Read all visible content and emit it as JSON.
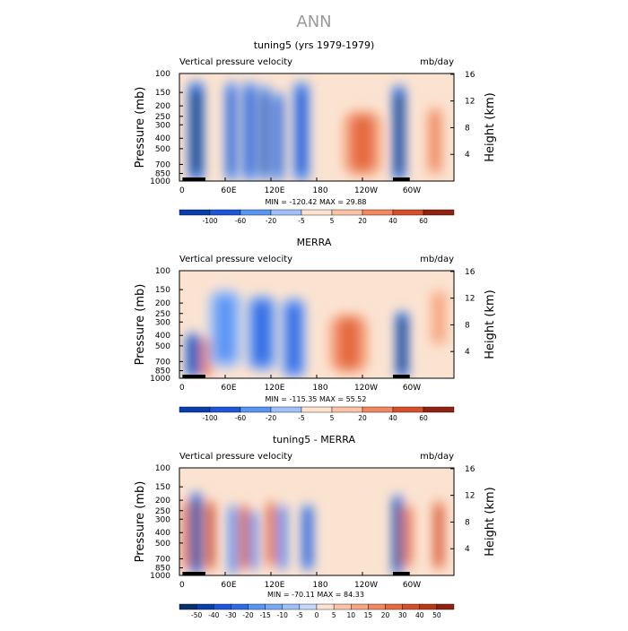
{
  "figure": {
    "title": "ANN"
  },
  "colors": {
    "blue_ramp": [
      "#08306b",
      "#0a3ea8",
      "#1f56d6",
      "#2d6ce6",
      "#3f80ef",
      "#5a95f3",
      "#7aa9f6",
      "#9fc1f8",
      "#c3d8fb"
    ],
    "red_ramp": [
      "#fde2cf",
      "#f9c4a6",
      "#f5a682",
      "#f08860",
      "#e56b40",
      "#d4502a",
      "#b8391a",
      "#8f2212"
    ],
    "neutral": "#fbe3d1",
    "topography": "#000000"
  },
  "chart_data": [
    {
      "type": "heatmap",
      "title": "tuning5 (yrs 1979-1979)",
      "left_label": "Vertical pressure velocity",
      "units": "mb/day",
      "ylabel": "Pressure (mb)",
      "ylabel_right": "Height (km)",
      "y_ticks": [
        "100",
        "150",
        "200",
        "250",
        "300",
        "400",
        "500",
        "700",
        "850",
        "1000"
      ],
      "y_ticks_right": [
        "16",
        "12",
        "8",
        "4"
      ],
      "x_ticks": [
        "0",
        "60E",
        "120E",
        "180",
        "120W",
        "60W"
      ],
      "stats": "MIN = -120.42   MAX =  29.88",
      "colorbar_labels": [
        "-100",
        "-60",
        "-20",
        "-5",
        "5",
        "20",
        "40",
        "60"
      ],
      "ylim": [
        1000,
        100
      ],
      "xlim": [
        0,
        360
      ],
      "fields": [
        {
          "lon": 22,
          "width": 12,
          "value": -0.95,
          "top": 120,
          "bottom": 1000
        },
        {
          "lon": 68,
          "width": 9,
          "value": -0.7,
          "top": 120,
          "bottom": 1000
        },
        {
          "lon": 92,
          "width": 10,
          "value": -0.75,
          "top": 120,
          "bottom": 1000
        },
        {
          "lon": 112,
          "width": 8,
          "value": -0.8,
          "top": 130,
          "bottom": 1000
        },
        {
          "lon": 130,
          "width": 8,
          "value": -0.7,
          "top": 150,
          "bottom": 1000
        },
        {
          "lon": 160,
          "width": 12,
          "value": -0.75,
          "top": 120,
          "bottom": 1000
        },
        {
          "lon": 240,
          "width": 30,
          "value": 0.55,
          "top": 220,
          "bottom": 900
        },
        {
          "lon": 288,
          "width": 10,
          "value": -0.95,
          "top": 130,
          "bottom": 1000
        },
        {
          "lon": 335,
          "width": 14,
          "value": 0.45,
          "top": 200,
          "bottom": 900
        }
      ]
    },
    {
      "type": "heatmap",
      "title": "MERRA",
      "left_label": "Vertical pressure velocity",
      "units": "mb/day",
      "ylabel": "Pressure (mb)",
      "ylabel_right": "Height (km)",
      "y_ticks": [
        "100",
        "150",
        "200",
        "250",
        "300",
        "400",
        "500",
        "700",
        "850",
        "1000"
      ],
      "y_ticks_right": [
        "16",
        "12",
        "8",
        "4"
      ],
      "x_ticks": [
        "0",
        "60E",
        "120E",
        "180",
        "120W",
        "60W"
      ],
      "stats": "MIN = -115.35   MAX =  55.52",
      "colorbar_labels": [
        "-100",
        "-60",
        "-20",
        "-5",
        "5",
        "20",
        "40",
        "60"
      ],
      "ylim": [
        1000,
        100
      ],
      "xlim": [
        0,
        360
      ],
      "fields": [
        {
          "lon": 18,
          "width": 12,
          "value": -0.8,
          "top": 380,
          "bottom": 1000
        },
        {
          "lon": 35,
          "width": 8,
          "value": 0.5,
          "top": 420,
          "bottom": 1000
        },
        {
          "lon": 60,
          "width": 25,
          "value": -0.35,
          "top": 150,
          "bottom": 800
        },
        {
          "lon": 108,
          "width": 22,
          "value": -0.6,
          "top": 170,
          "bottom": 850
        },
        {
          "lon": 150,
          "width": 18,
          "value": -0.65,
          "top": 180,
          "bottom": 1000
        },
        {
          "lon": 222,
          "width": 30,
          "value": 0.6,
          "top": 250,
          "bottom": 900
        },
        {
          "lon": 292,
          "width": 10,
          "value": -0.9,
          "top": 240,
          "bottom": 1000
        },
        {
          "lon": 340,
          "width": 14,
          "value": 0.3,
          "top": 150,
          "bottom": 500
        }
      ]
    },
    {
      "type": "heatmap",
      "title": "tuning5 - MERRA",
      "left_label": "Vertical pressure velocity",
      "units": "mb/day",
      "ylabel": "Pressure (mb)",
      "ylabel_right": "Height (km)",
      "y_ticks": [
        "100",
        "150",
        "200",
        "250",
        "300",
        "400",
        "500",
        "700",
        "850",
        "1000"
      ],
      "y_ticks_right": [
        "16",
        "12",
        "8",
        "4"
      ],
      "x_ticks": [
        "0",
        "60E",
        "120E",
        "180",
        "120W",
        "60W"
      ],
      "stats": "MIN = -70.11   MAX =  84.33",
      "colorbar_labels": [
        "-50",
        "-40",
        "-30",
        "-20",
        "-15",
        "-10",
        "-5",
        "0",
        "5",
        "10",
        "15",
        "20",
        "30",
        "40",
        "50"
      ],
      "ylim": [
        1000,
        100
      ],
      "xlim": [
        0,
        360
      ],
      "fields": [
        {
          "lon": 8,
          "width": 6,
          "value": 0.7,
          "top": 200,
          "bottom": 900
        },
        {
          "lon": 22,
          "width": 9,
          "value": -0.95,
          "top": 170,
          "bottom": 1000
        },
        {
          "lon": 40,
          "width": 8,
          "value": 0.8,
          "top": 200,
          "bottom": 900
        },
        {
          "lon": 70,
          "width": 7,
          "value": -0.55,
          "top": 220,
          "bottom": 1000
        },
        {
          "lon": 85,
          "width": 7,
          "value": 0.75,
          "top": 220,
          "bottom": 900
        },
        {
          "lon": 98,
          "width": 6,
          "value": -0.55,
          "top": 250,
          "bottom": 900
        },
        {
          "lon": 120,
          "width": 8,
          "value": 0.7,
          "top": 200,
          "bottom": 850
        },
        {
          "lon": 135,
          "width": 7,
          "value": -0.6,
          "top": 220,
          "bottom": 900
        },
        {
          "lon": 168,
          "width": 9,
          "value": -0.7,
          "top": 220,
          "bottom": 900
        },
        {
          "lon": 286,
          "width": 8,
          "value": -0.95,
          "top": 180,
          "bottom": 1000
        },
        {
          "lon": 300,
          "width": 8,
          "value": 0.5,
          "top": 220,
          "bottom": 850
        },
        {
          "lon": 340,
          "width": 10,
          "value": 0.7,
          "top": 200,
          "bottom": 900
        }
      ]
    }
  ]
}
